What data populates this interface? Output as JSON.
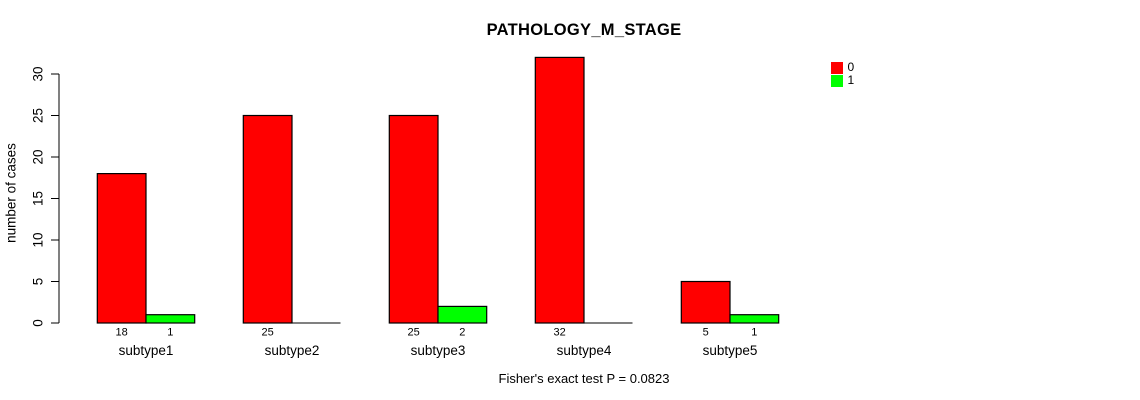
{
  "chart_data": {
    "type": "bar",
    "title": "PATHOLOGY_M_STAGE",
    "ylabel": "number of cases",
    "xlabel": "",
    "note": "Fisher's exact test P = 0.0823",
    "categories": [
      "subtype1",
      "subtype2",
      "subtype3",
      "subtype4",
      "subtype5"
    ],
    "series": [
      {
        "name": "0",
        "color": "#FF0000",
        "values": [
          18,
          25,
          25,
          32,
          5
        ]
      },
      {
        "name": "1",
        "color": "#00FF00",
        "values": [
          1,
          0,
          2,
          0,
          1
        ]
      }
    ],
    "count_labels": [
      [
        "18",
        "1"
      ],
      [
        "25",
        ""
      ],
      [
        "25",
        "2"
      ],
      [
        "32",
        ""
      ],
      [
        "5",
        "1"
      ]
    ],
    "yticks": [
      0,
      5,
      10,
      15,
      20,
      25,
      30
    ],
    "ylim": [
      0,
      32
    ],
    "grid": false,
    "legend_position": "top-right",
    "bar_border_color": "#000000",
    "axis_color": "#000000"
  }
}
